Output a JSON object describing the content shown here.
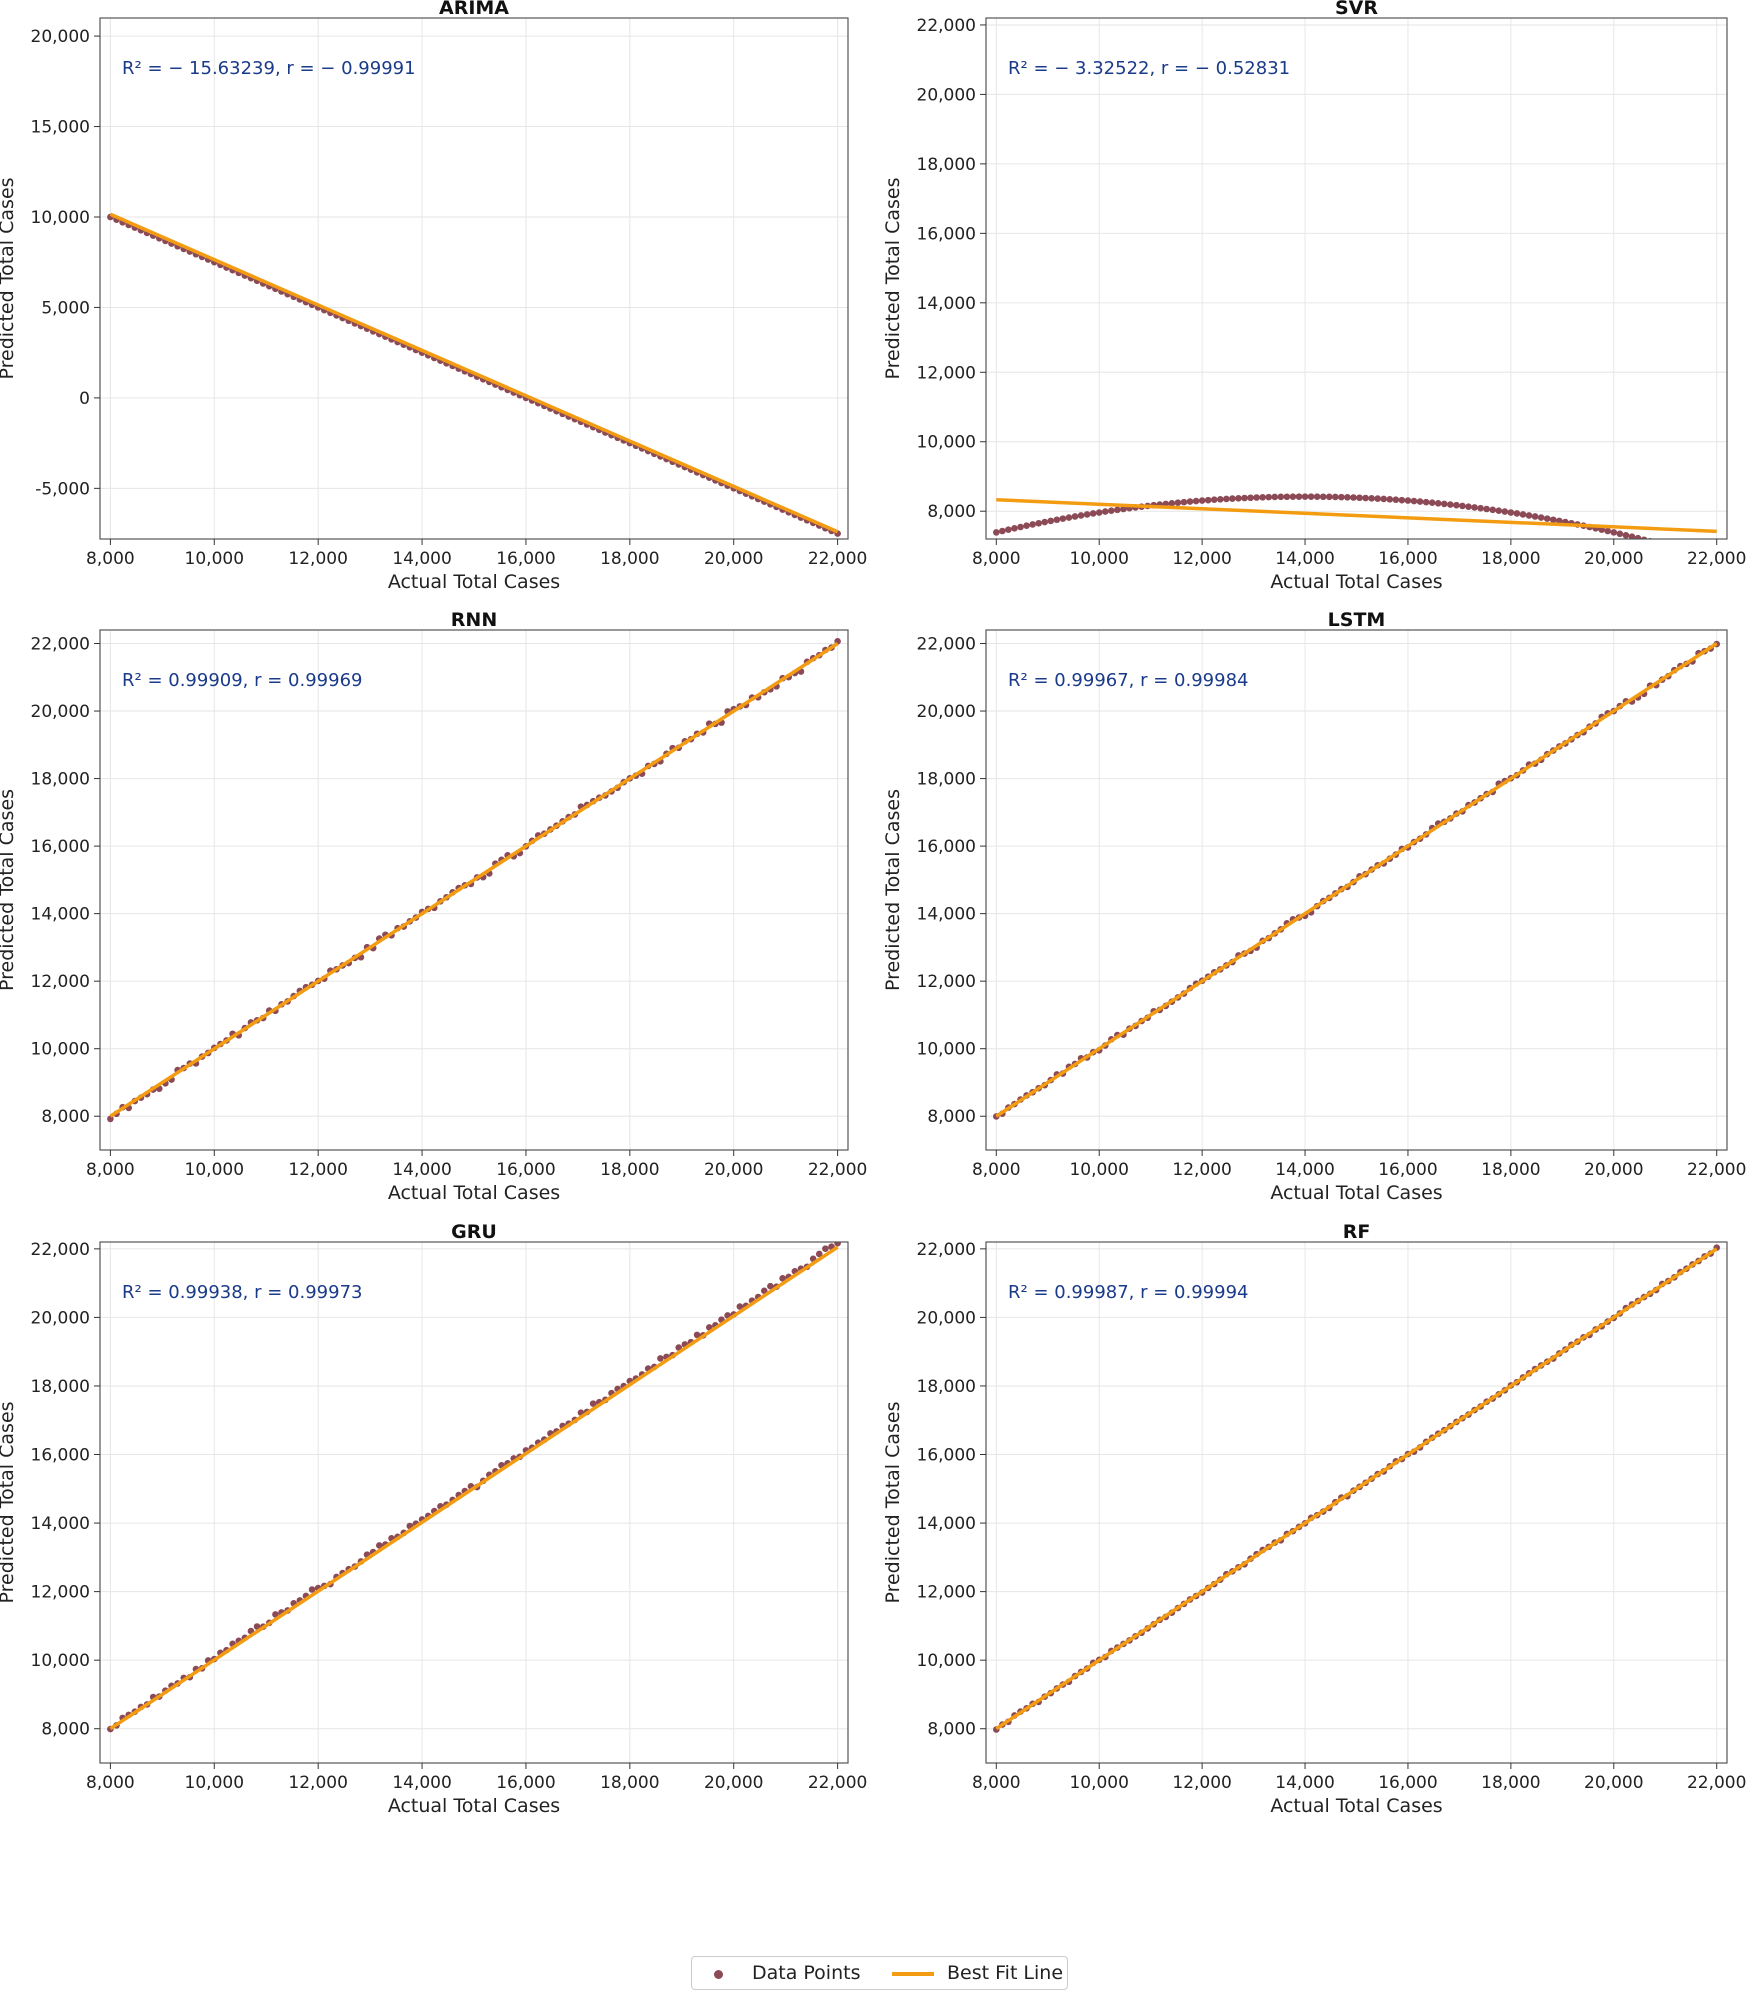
{
  "colors": {
    "points": "#8B4A55",
    "fit_line": "#F39C12",
    "annotation": "#1A3A8A",
    "grid": "#e6e6e6",
    "axis": "#555555"
  },
  "legend": {
    "points_label": "Data Points",
    "line_label": "Best Fit Line"
  },
  "chart_data": [
    {
      "type": "scatter",
      "title": "ARIMA",
      "xlabel": "Actual Total Cases",
      "ylabel": "Predicted Total Cases",
      "annotation": "R² = − 15.63239,  r = − 0.99991",
      "xlim": [
        7800,
        22200
      ],
      "ylim": [
        -7800,
        21000
      ],
      "xticks": [
        8000,
        10000,
        12000,
        14000,
        16000,
        18000,
        20000,
        22000
      ],
      "xtick_labels": [
        "8,000",
        "10,000",
        "12,000",
        "14,000",
        "16,000",
        "18,000",
        "20,000",
        "22,000"
      ],
      "yticks": [
        -5000,
        0,
        5000,
        10000,
        15000,
        20000
      ],
      "ytick_labels": [
        "-5,000",
        "0",
        "5,000",
        "10,000",
        "15,000",
        "20,000"
      ],
      "points_pattern": "linear",
      "points_params": {
        "x0": 8000,
        "x1": 22000,
        "y0": 10000,
        "y1": -7500,
        "n": 120,
        "noise": 0
      },
      "fit_line": {
        "x": [
          8000,
          22000
        ],
        "y": [
          10150,
          -7400
        ]
      },
      "grid": true
    },
    {
      "type": "scatter",
      "title": "SVR",
      "xlabel": "Actual Total Cases",
      "ylabel": "Predicted Total Cases",
      "annotation": "R² = − 3.32522,  r = − 0.52831",
      "xlim": [
        7800,
        22200
      ],
      "ylim": [
        7200,
        22200
      ],
      "xticks": [
        8000,
        10000,
        12000,
        14000,
        16000,
        18000,
        20000,
        22000
      ],
      "xtick_labels": [
        "8,000",
        "10,000",
        "12,000",
        "14,000",
        "16,000",
        "18,000",
        "20,000",
        "22,000"
      ],
      "yticks": [
        8000,
        10000,
        12000,
        14000,
        16000,
        18000,
        20000,
        22000
      ],
      "ytick_labels": [
        "8,000",
        "10,000",
        "12,000",
        "14,000",
        "16,000",
        "18,000",
        "20,000",
        "22,000"
      ],
      "points_pattern": "parabola",
      "points_params": {
        "x0": 8000,
        "x1": 22000,
        "xv": 14000,
        "yv": 8420,
        "a": 2.86e-05,
        "n": 120
      },
      "fit_line": {
        "x": [
          8000,
          22000
        ],
        "y": [
          8330,
          7420
        ]
      },
      "grid": true
    },
    {
      "type": "scatter",
      "title": "RNN",
      "xlabel": "Actual Total Cases",
      "ylabel": "Predicted Total Cases",
      "annotation": "R² = 0.99909,  r = 0.99969",
      "xlim": [
        7800,
        22200
      ],
      "ylim": [
        7000,
        22400
      ],
      "xticks": [
        8000,
        10000,
        12000,
        14000,
        16000,
        18000,
        20000,
        22000
      ],
      "xtick_labels": [
        "8,000",
        "10,000",
        "12,000",
        "14,000",
        "16,000",
        "18,000",
        "20,000",
        "22,000"
      ],
      "yticks": [
        8000,
        10000,
        12000,
        14000,
        16000,
        18000,
        20000,
        22000
      ],
      "ytick_labels": [
        "8,000",
        "10,000",
        "12,000",
        "14,000",
        "16,000",
        "18,000",
        "20,000",
        "22,000"
      ],
      "points_pattern": "linear",
      "points_params": {
        "x0": 8000,
        "x1": 22000,
        "y0": 8000,
        "y1": 22000,
        "n": 120,
        "noise": 130,
        "seed": 3
      },
      "fit_line": {
        "x": [
          8000,
          22000
        ],
        "y": [
          8000,
          22000
        ]
      },
      "grid": true
    },
    {
      "type": "scatter",
      "title": "LSTM",
      "xlabel": "Actual Total Cases",
      "ylabel": "Predicted Total Cases",
      "annotation": "R² = 0.99967,  r = 0.99984",
      "xlim": [
        7800,
        22200
      ],
      "ylim": [
        7000,
        22400
      ],
      "xticks": [
        8000,
        10000,
        12000,
        14000,
        16000,
        18000,
        20000,
        22000
      ],
      "xtick_labels": [
        "8,000",
        "10,000",
        "12,000",
        "14,000",
        "16,000",
        "18,000",
        "20,000",
        "22,000"
      ],
      "yticks": [
        8000,
        10000,
        12000,
        14000,
        16000,
        18000,
        20000,
        22000
      ],
      "ytick_labels": [
        "8,000",
        "10,000",
        "12,000",
        "14,000",
        "16,000",
        "18,000",
        "20,000",
        "22,000"
      ],
      "points_pattern": "linear",
      "points_params": {
        "x0": 8000,
        "x1": 22000,
        "y0": 8000,
        "y1": 22000,
        "n": 120,
        "noise": 85,
        "seed": 7
      },
      "fit_line": {
        "x": [
          8000,
          22000
        ],
        "y": [
          8000,
          22000
        ]
      },
      "grid": true
    },
    {
      "type": "scatter",
      "title": "GRU",
      "xlabel": "Actual Total Cases",
      "ylabel": "Predicted Total Cases",
      "annotation": "R² = 0.99938,  r = 0.99973",
      "xlim": [
        7800,
        22200
      ],
      "ylim": [
        7000,
        22200
      ],
      "xticks": [
        8000,
        10000,
        12000,
        14000,
        16000,
        18000,
        20000,
        22000
      ],
      "xtick_labels": [
        "8,000",
        "10,000",
        "12,000",
        "14,000",
        "16,000",
        "18,000",
        "20,000",
        "22,000"
      ],
      "yticks": [
        8000,
        10000,
        12000,
        14000,
        16000,
        18000,
        20000,
        22000
      ],
      "ytick_labels": [
        "8,000",
        "10,000",
        "12,000",
        "14,000",
        "16,000",
        "18,000",
        "20,000",
        "22,000"
      ],
      "points_pattern": "linear",
      "points_params": {
        "x0": 8000,
        "x1": 22000,
        "y0": 8050,
        "y1": 22150,
        "n": 120,
        "noise": 110,
        "seed": 11
      },
      "fit_line": {
        "x": [
          8000,
          22000
        ],
        "y": [
          8000,
          22050
        ]
      },
      "grid": true
    },
    {
      "type": "scatter",
      "title": "RF",
      "xlabel": "Actual Total Cases",
      "ylabel": "Predicted Total Cases",
      "annotation": "R² = 0.99987,  r = 0.99994",
      "xlim": [
        7800,
        22200
      ],
      "ylim": [
        7000,
        22200
      ],
      "xticks": [
        8000,
        10000,
        12000,
        14000,
        16000,
        18000,
        20000,
        22000
      ],
      "xtick_labels": [
        "8,000",
        "10,000",
        "12,000",
        "14,000",
        "16,000",
        "18,000",
        "20,000",
        "22,000"
      ],
      "yticks": [
        8000,
        10000,
        12000,
        14000,
        16000,
        18000,
        20000,
        22000
      ],
      "ytick_labels": [
        "8,000",
        "10,000",
        "12,000",
        "14,000",
        "16,000",
        "18,000",
        "20,000",
        "22,000"
      ],
      "points_pattern": "linear",
      "points_params": {
        "x0": 8000,
        "x1": 22000,
        "y0": 8000,
        "y1": 22000,
        "n": 120,
        "noise": 45,
        "seed": 19
      },
      "fit_line": {
        "x": [
          8000,
          22000
        ],
        "y": [
          8000,
          22000
        ]
      },
      "grid": true
    }
  ]
}
